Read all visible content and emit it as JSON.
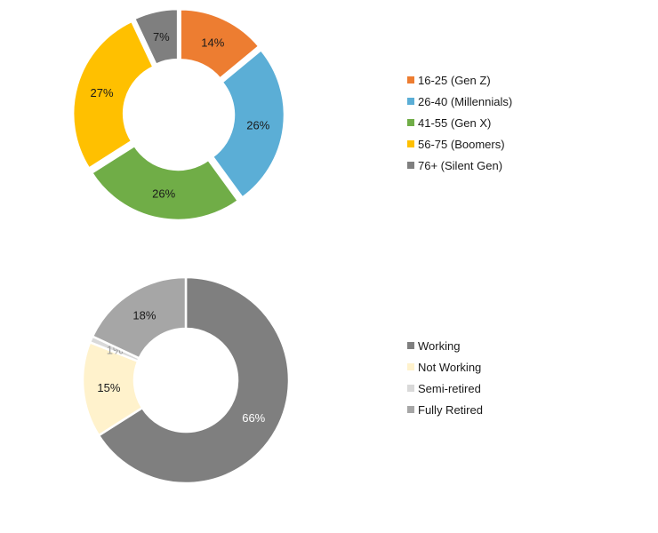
{
  "chart_data": [
    {
      "type": "pie",
      "style": "donut",
      "title": "",
      "legend_position": "right",
      "categories": [
        "16-25 (Gen Z)",
        "26-40 (Millennials)",
        "41-55 (Gen X)",
        "56-75 (Boomers)",
        "76+ (Silent Gen)"
      ],
      "values": [
        14,
        26,
        26,
        27,
        7
      ],
      "labels": [
        "14%",
        "26%",
        "26%",
        "27%",
        "7%"
      ],
      "colors": [
        "#ed7d31",
        "#5baed6",
        "#70ad47",
        "#ffc000",
        "#7f7f7f"
      ],
      "label_colors": [
        "#1a1a1a",
        "#1a1a1a",
        "#1a1a1a",
        "#1a1a1a",
        "#1a1a1a"
      ],
      "exploded": true
    },
    {
      "type": "pie",
      "style": "donut",
      "title": "",
      "legend_position": "right",
      "categories": [
        "Working",
        "Not Working",
        "Semi-retired",
        "Fully Retired"
      ],
      "values": [
        66,
        15,
        1,
        18
      ],
      "labels": [
        "66%",
        "15%",
        "1%",
        "18%"
      ],
      "colors": [
        "#7f7f7f",
        "#fff2cc",
        "#d9d9d9",
        "#a6a6a6"
      ],
      "label_colors": [
        "#ffffff",
        "#1a1a1a",
        "#9a9a9a",
        "#1a1a1a"
      ],
      "exploded": false
    }
  ]
}
